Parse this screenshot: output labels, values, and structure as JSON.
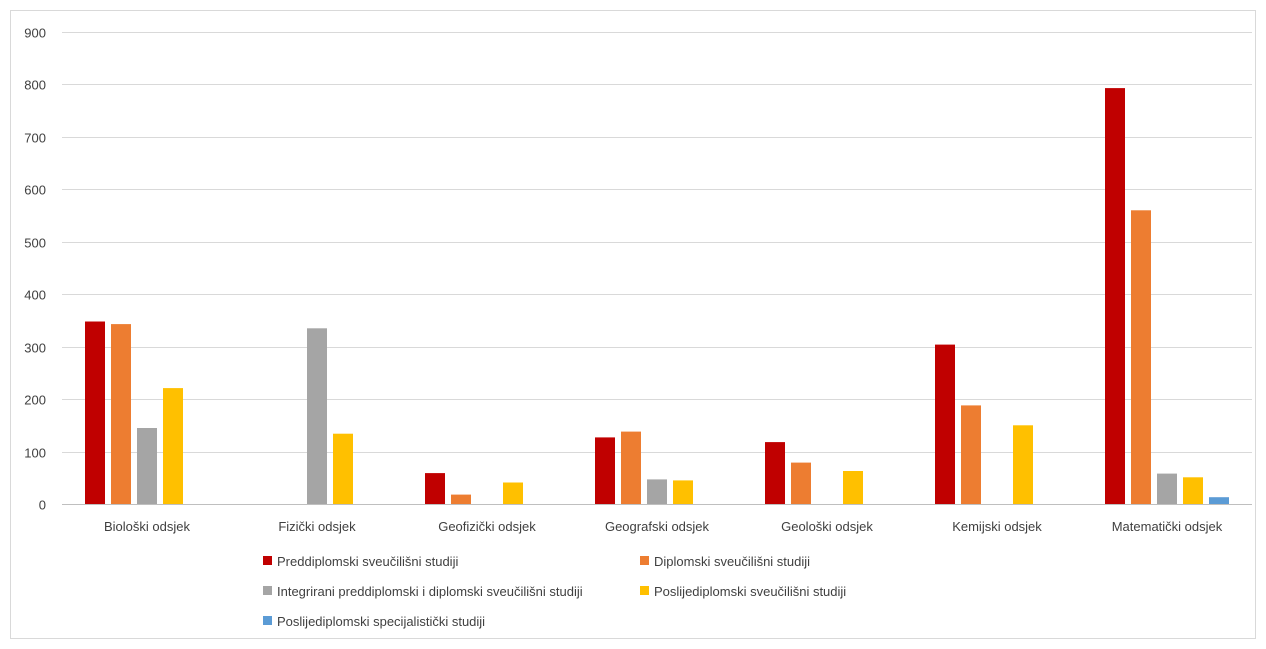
{
  "chart_data": {
    "type": "bar",
    "title": "",
    "xlabel": "",
    "ylabel": "",
    "ylim": [
      0,
      900
    ],
    "yticks": [
      0,
      100,
      200,
      300,
      400,
      500,
      600,
      700,
      800,
      900
    ],
    "grid": true,
    "legend_position": "bottom",
    "categories": [
      "Biološki odsjek",
      "Fizički odsjek",
      "Geofizički odsjek",
      "Geografski odsjek",
      "Geološki odsjek",
      "Kemijski odsjek",
      "Matematički odsjek"
    ],
    "series": [
      {
        "name": "Preddiplomski sveučilišni studiji",
        "color": "#c00000",
        "values": [
          348,
          0,
          59,
          127,
          118,
          304,
          793
        ]
      },
      {
        "name": "Diplomski sveučilišni studiji",
        "color": "#ed7d31",
        "values": [
          343,
          0,
          18,
          138,
          79,
          188,
          560
        ]
      },
      {
        "name": "Integrirani preddiplomski i diplomski sveučilišni studiji",
        "color": "#a5a5a5",
        "values": [
          145,
          335,
          0,
          47,
          0,
          0,
          58
        ]
      },
      {
        "name": "Poslijediplomski sveučilišni studiji",
        "color": "#ffc000",
        "values": [
          221,
          134,
          41,
          45,
          63,
          150,
          51
        ]
      },
      {
        "name": "Poslijediplomski specijalistički studiji",
        "color": "#5b9bd5",
        "values": [
          0,
          0,
          0,
          0,
          0,
          0,
          13
        ]
      }
    ]
  }
}
